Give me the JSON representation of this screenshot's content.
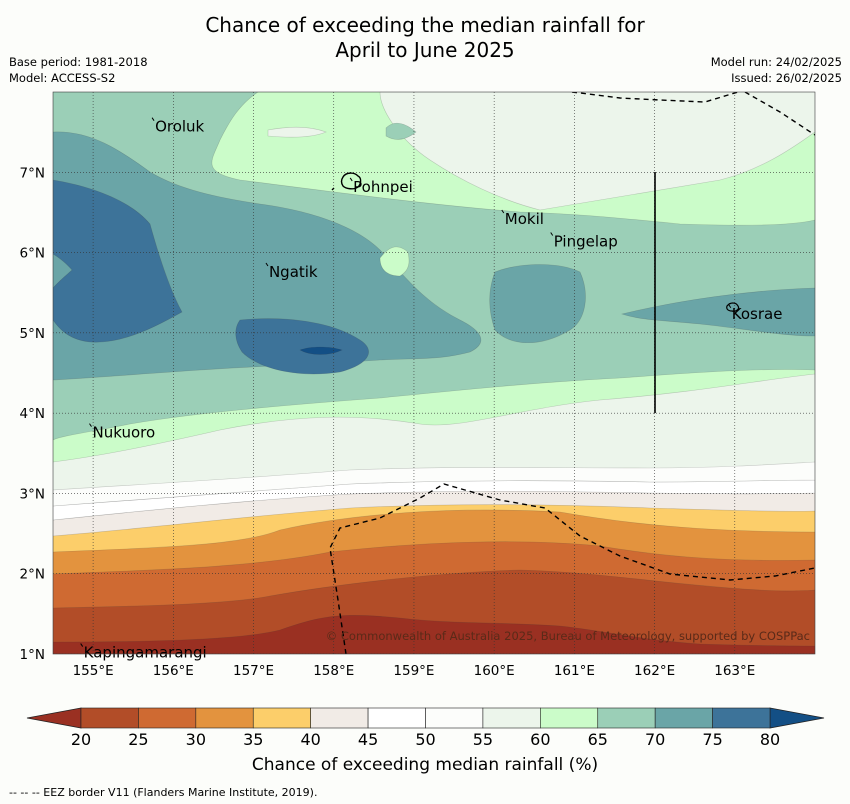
{
  "title_line1": "Chance of exceeding the median rainfall for",
  "title_line2": "April to June 2025",
  "base_period": "Base period: 1981-2018",
  "model": "Model: ACCESS-S2",
  "model_run": "Model run: 24/02/2025",
  "issued": "Issued: 26/02/2025",
  "copyright": "© Commonwealth of Australia 2025, Bureau of Meteorology, supported by COSPPac",
  "colorbar_label": "Chance of exceeding median rainfall (%)",
  "eez_note": "--  --  -- EEZ border V11 (Flanders Marine Institute, 2019).",
  "map_extent": {
    "lon": [
      154.5,
      164.0
    ],
    "lat": [
      1.0,
      8.0
    ]
  },
  "lon_ticks": [
    155,
    156,
    157,
    158,
    159,
    160,
    161,
    162,
    163
  ],
  "lon_tick_labels": [
    "155°E",
    "156°E",
    "157°E",
    "158°E",
    "159°E",
    "160°E",
    "161°E",
    "162°E",
    "163°E"
  ],
  "lat_ticks": [
    1,
    2,
    3,
    4,
    5,
    6,
    7
  ],
  "lat_tick_labels": [
    "1°N",
    "2°N",
    "3°N",
    "4°N",
    "5°N",
    "6°N",
    "7°N"
  ],
  "places": [
    {
      "name": "Oroluk",
      "lon": 155.76,
      "lat": 7.63
    },
    {
      "name": "Pohnpei",
      "lon": 158.23,
      "lat": 6.88
    },
    {
      "name": "Mokil",
      "lon": 160.12,
      "lat": 6.48
    },
    {
      "name": "Pingelap",
      "lon": 160.73,
      "lat": 6.2
    },
    {
      "name": "Ngatik",
      "lon": 157.18,
      "lat": 5.82
    },
    {
      "name": "Kosrae",
      "lon": 162.95,
      "lat": 5.3
    },
    {
      "name": "Nukuoro",
      "lon": 154.98,
      "lat": 3.82
    },
    {
      "name": "Kapingamarangi",
      "lon": 154.87,
      "lat": 1.08
    }
  ],
  "colorbar": {
    "levels": [
      20,
      25,
      30,
      35,
      40,
      45,
      50,
      55,
      60,
      65,
      70,
      75,
      80
    ],
    "colors": [
      "#9a3022",
      "#b24d28",
      "#cf6a32",
      "#e3933e",
      "#fcce6a",
      "#f1ebe6",
      "#ffffff",
      "#fcfdfb",
      "#ecf5eb",
      "#cbfcc9",
      "#9bcfb7",
      "#6aa5a7",
      "#3d7399",
      "#134f85"
    ],
    "under_color": "#9a3022",
    "over_color": "#134f85"
  },
  "colors": {
    "c20": "#9a3022",
    "c25": "#b24d28",
    "c30": "#cf6a32",
    "c35": "#e3933e",
    "c40": "#fcce6a",
    "c45": "#f1ebe6",
    "c50": "#ffffff",
    "c55": "#fcfdfb",
    "c60": "#ecf5eb",
    "c65": "#cbfcc9",
    "c70": "#9bcfb7",
    "c75": "#6aa5a7",
    "c80": "#3d7399",
    "c85": "#134f85"
  }
}
